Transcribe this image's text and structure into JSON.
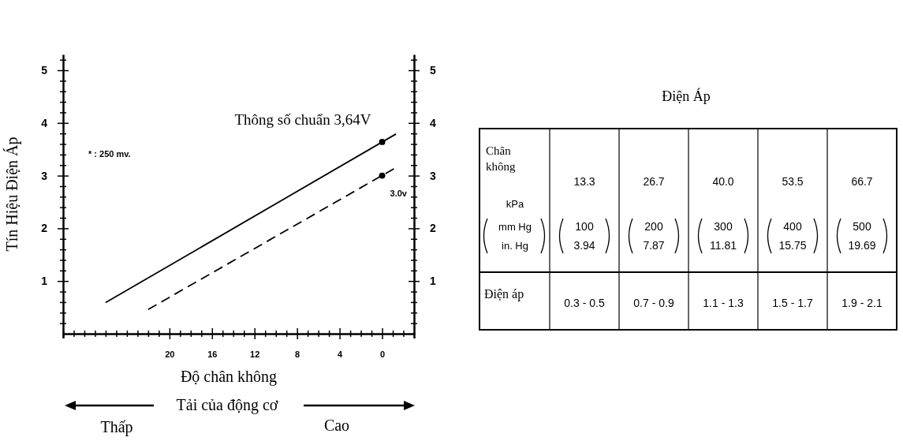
{
  "chart_data": [
    {
      "type": "line",
      "xlabel": "Độ chân không",
      "ylabel": "Tín Hiệu Điện Áp",
      "xlim": [
        30,
        -3
      ],
      "xticks": [
        {
          "value": 30,
          "label": null
        },
        {
          "value": 29,
          "label": null
        },
        {
          "value": 28,
          "label": null
        },
        {
          "value": 27,
          "label": null
        },
        {
          "value": 26,
          "label": null
        },
        {
          "value": 25,
          "label": null
        },
        {
          "value": 24,
          "label": null
        },
        {
          "value": 23,
          "label": null
        },
        {
          "value": 22,
          "label": null
        },
        {
          "value": 21,
          "label": null
        },
        20,
        {
          "value": 19,
          "label": null
        },
        {
          "value": 18,
          "label": null
        },
        {
          "value": 17,
          "label": null
        },
        16,
        {
          "value": 15,
          "label": null
        },
        {
          "value": 14,
          "label": null
        },
        {
          "value": 13,
          "label": null
        },
        12,
        {
          "value": 11,
          "label": null
        },
        {
          "value": 10,
          "label": null
        },
        {
          "value": 9,
          "label": null
        },
        8,
        {
          "value": 7,
          "label": null
        },
        {
          "value": 6,
          "label": null
        },
        {
          "value": 5,
          "label": null
        },
        4,
        {
          "value": 3,
          "label": null
        },
        {
          "value": 2,
          "label": null
        },
        {
          "value": 1,
          "label": null
        },
        0,
        {
          "value": -1,
          "label": null
        },
        {
          "value": -2,
          "label": null
        }
      ],
      "ylim": [
        0,
        5.3
      ],
      "yticks": [
        {
          "value": 0.2,
          "label": null
        },
        {
          "value": 0.4,
          "label": null
        },
        {
          "value": 0.6,
          "label": null
        },
        {
          "value": 0.8,
          "label": null
        },
        1,
        {
          "value": 1.2,
          "label": null
        },
        {
          "value": 1.4,
          "label": null
        },
        {
          "value": 1.6,
          "label": null
        },
        {
          "value": 1.8,
          "label": null
        },
        2,
        {
          "value": 2.2,
          "label": null
        },
        {
          "value": 2.4,
          "label": null
        },
        {
          "value": 2.6,
          "label": null
        },
        {
          "value": 2.8,
          "label": null
        },
        3,
        {
          "value": 3.2,
          "label": null
        },
        {
          "value": 3.4,
          "label": null
        },
        {
          "value": 3.6,
          "label": null
        },
        {
          "value": 3.8,
          "label": null
        },
        4,
        {
          "value": 4.2,
          "label": null
        },
        {
          "value": 4.4,
          "label": null
        },
        {
          "value": 4.6,
          "label": null
        },
        {
          "value": 4.8,
          "label": null
        },
        5,
        {
          "value": 5.2,
          "label": null
        }
      ],
      "y2lim": [
        0,
        5.3
      ],
      "y2ticks": [
        {
          "value": 0.2,
          "label": null
        },
        {
          "value": 0.4,
          "label": null
        },
        {
          "value": 0.6,
          "label": null
        },
        {
          "value": 0.8,
          "label": null
        },
        1,
        {
          "value": 1.2,
          "label": null
        },
        {
          "value": 1.4,
          "label": null
        },
        {
          "value": 1.6,
          "label": null
        },
        {
          "value": 1.8,
          "label": null
        },
        2,
        {
          "value": 2.2,
          "label": null
        },
        {
          "value": 2.4,
          "label": null
        },
        {
          "value": 2.6,
          "label": null
        },
        {
          "value": 2.8,
          "label": null
        },
        3,
        {
          "value": 3.2,
          "label": null
        },
        {
          "value": 3.4,
          "label": null
        },
        {
          "value": 3.6,
          "label": null
        },
        {
          "value": 3.8,
          "label": null
        },
        4,
        {
          "value": 4.2,
          "label": null
        },
        {
          "value": 4.4,
          "label": null
        },
        {
          "value": 4.6,
          "label": null
        },
        {
          "value": 4.8,
          "label": null
        },
        5,
        {
          "value": 5.2,
          "label": null
        }
      ],
      "series": [
        {
          "type": "line",
          "color": "#000000",
          "line_style": "solid",
          "x": [
            26,
            -1.3
          ],
          "values": [
            0.59,
            3.79
          ]
        },
        {
          "type": "line",
          "color": "#000000",
          "line_style": "dashed",
          "x": [
            22,
            -1.1
          ],
          "values": [
            0.46,
            3.13
          ]
        },
        {
          "type": "scatter",
          "color": "#000000",
          "marker": "circle",
          "x": [
            0,
            0
          ],
          "values": [
            3.64,
            3.0
          ]
        }
      ],
      "annotations": [
        {
          "text": "Thông số chuẩn 3,64V",
          "x": 0,
          "y": 3.64
        },
        {
          "text": "3.0v",
          "x": 0,
          "y": 3.0
        },
        "* : 250 mv.",
        "Tải của động cơ",
        "Thấp",
        "Cao"
      ]
    },
    {
      "type": "other",
      "title": "Điện Áp",
      "annotations": [
        "Chân không",
        "kPa",
        "mm Hg",
        "in. Hg",
        "13.3",
        "100",
        "3.94",
        "26.7",
        "200",
        "7.87",
        "40.0",
        "300",
        "11.81",
        "53.5",
        "400",
        "15.75",
        "66.7",
        "500",
        "19.69",
        "Điện áp",
        "0.3 - 0.5",
        "0.7 - 0.9",
        "1.1 - 1.3",
        "1.5 - 1.7",
        "1.9 - 2.1"
      ]
    }
  ]
}
